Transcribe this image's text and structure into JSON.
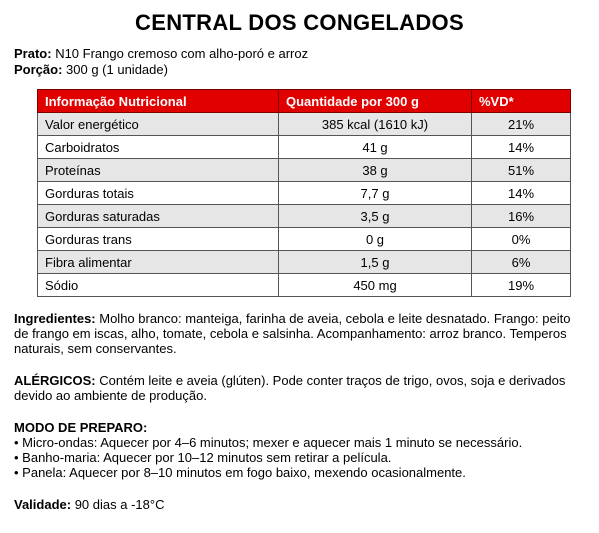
{
  "title": "CENTRAL DOS CONGELADOS",
  "prato": {
    "label": "Prato:",
    "value": "N10 Frango cremoso com alho-poró e arroz"
  },
  "porcao": {
    "label": "Porção:",
    "value": "300 g (1 unidade)"
  },
  "table": {
    "headers": [
      "Informação Nutricional",
      "Quantidade por 300 g",
      "%VD*"
    ],
    "rows": [
      [
        "Valor energético",
        "385 kcal (1610 kJ)",
        "21%"
      ],
      [
        "Carboidratos",
        "41 g",
        "14%"
      ],
      [
        "Proteínas",
        "38 g",
        "51%"
      ],
      [
        "Gorduras totais",
        "7,7 g",
        "14%"
      ],
      [
        "Gorduras saturadas",
        "3,5 g",
        "16%"
      ],
      [
        "Gorduras trans",
        "0 g",
        "0%"
      ],
      [
        "Fibra alimentar",
        "1,5 g",
        "6%"
      ],
      [
        "Sódio",
        "450 mg",
        "19%"
      ]
    ],
    "header_color": "#e00000"
  },
  "ingredientes": {
    "label": "Ingredientes:",
    "text": "Molho branco: manteiga, farinha de aveia, cebola e leite desnatado. Frango: peito de frango em iscas, alho, tomate, cebola e salsinha. Acompanhamento: arroz branco. Temperos naturais, sem conservantes."
  },
  "alergicos": {
    "label": "ALÉRGICOS:",
    "text": "Contém leite e aveia (glúten). Pode conter traços de trigo, ovos, soja e derivados devido ao ambiente de produção."
  },
  "preparo": {
    "label": "MODO DE PREPARO:",
    "items": [
      "• Micro-ondas: Aquecer por 4–6 minutos; mexer e aquecer mais 1 minuto se necessário.",
      "• Banho-maria: Aquecer por 10–12 minutos sem retirar a película.",
      "• Panela: Aquecer por 8–10 minutos em fogo baixo, mexendo ocasionalmente."
    ]
  },
  "validade": {
    "label": "Validade:",
    "value": "90 dias a -18°C"
  }
}
